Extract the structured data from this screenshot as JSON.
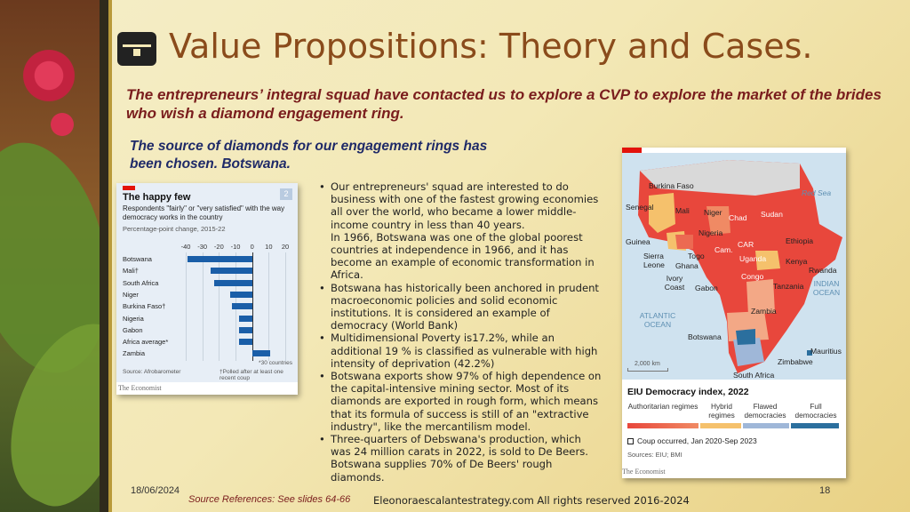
{
  "slide": {
    "title": "Value Propositions: Theory and Cases.",
    "intro": "The entrepreneurs’ integral squad have contacted us to explore a CVP to explore the market of the brides who wish a diamond engagement ring.",
    "subheading": "The source of diamonds for our engagement rings has been chosen. Botswana.",
    "date": "18/06/2024",
    "source_references": "Source References: See slides 64-66",
    "copyright": "Eleonoraescalantestrategy.com  All rights reserved 2016-2024",
    "page_number": "18"
  },
  "bullets": [
    {
      "text": "Our entrepreneurs' squad are interested to do business with one of the fastest growing economies all over the world, who became a lower middle-income country in less than 40 years.",
      "continuation": "In 1966, Botswana was one of the global poorest countries at independence in 1966, and it has become an example of economic transformation in Africa."
    },
    {
      "text": "Botswana has historically been anchored in prudent macroeconomic policies and solid economic institutions. It is considered an example of democracy (World Bank)"
    },
    {
      "text": "Multidimensional Poverty is17.2%, while an additional 19 % is classified as vulnerable  with high intensity of deprivation (42.2%)"
    },
    {
      "text": "Botswana exports show 97% of high dependence on the capital-intensive mining sector. Most of its diamonds are exported in rough form, which means that its formula of success is still of an \"extractive industry\", like the mercantilism model."
    },
    {
      "text": "Three-quarters of Debswana's production, which was 24 million carats in 2022, is sold to De Beers. Botswana supplies 70% of De Beers' rough diamonds."
    }
  ],
  "chart_data": {
    "type": "bar",
    "title": "The happy few",
    "badge": "2",
    "subtitle": "Respondents \"fairly\" or \"very satisfied\" with the way democracy works in the country",
    "unit_note": "Percentage-point change, 2015-22",
    "categories": [
      "Botswana",
      "Mali†",
      "South Africa",
      "Niger",
      "Burkina Faso†",
      "Nigeria",
      "Gabon",
      "Africa average*",
      "Zambia"
    ],
    "values": [
      -39,
      -25,
      -23,
      -13,
      -12,
      -8,
      -8,
      -8,
      11
    ],
    "ticks": [
      "-40",
      "-30",
      "-20",
      "-10",
      "0",
      "10",
      "20"
    ],
    "xlim": [
      -40,
      20
    ],
    "footnote_countries": "*30 countries",
    "source": "Source: Afrobarometer",
    "footnote_polled": "†Polled after at least one recent coup",
    "brand": "The Economist",
    "bar_color": "#1a5ea8"
  },
  "map": {
    "countries": [
      "Burkina Faso",
      "Senegal",
      "Mali",
      "Niger",
      "Chad",
      "Sudan",
      "Nigeria",
      "Guinea",
      "Togo",
      "Sierra Leone",
      "Ghana",
      "Ivory Coast",
      "Cam.",
      "CAR",
      "Uganda",
      "Kenya",
      "Ethiopia",
      "Gabon",
      "Congo",
      "Tanzania",
      "Rwanda",
      "Zambia",
      "Botswana",
      "Zimbabwe",
      "South Africa",
      "Mauritius"
    ],
    "oceans": {
      "atlantic": "ATLANTIC OCEAN",
      "indian": "INDIAN OCEAN",
      "red_sea": "Red Sea"
    },
    "scale": "2,000 km",
    "legend_title": "EIU Democracy index, 2022",
    "legend": [
      "Authoritarian regimes",
      "Hybrid regimes",
      "Flawed democracies",
      "Full democracies"
    ],
    "coup_label": "Coup occurred, Jan 2020-Sep 2023",
    "source": "Sources: EIU; BMI",
    "brand": "The Economist",
    "colors": {
      "authoritarian": "#e8473c",
      "hybrid": "#f5c16c",
      "flawed": "#9fb7d8",
      "full": "#2b6f9e"
    }
  }
}
